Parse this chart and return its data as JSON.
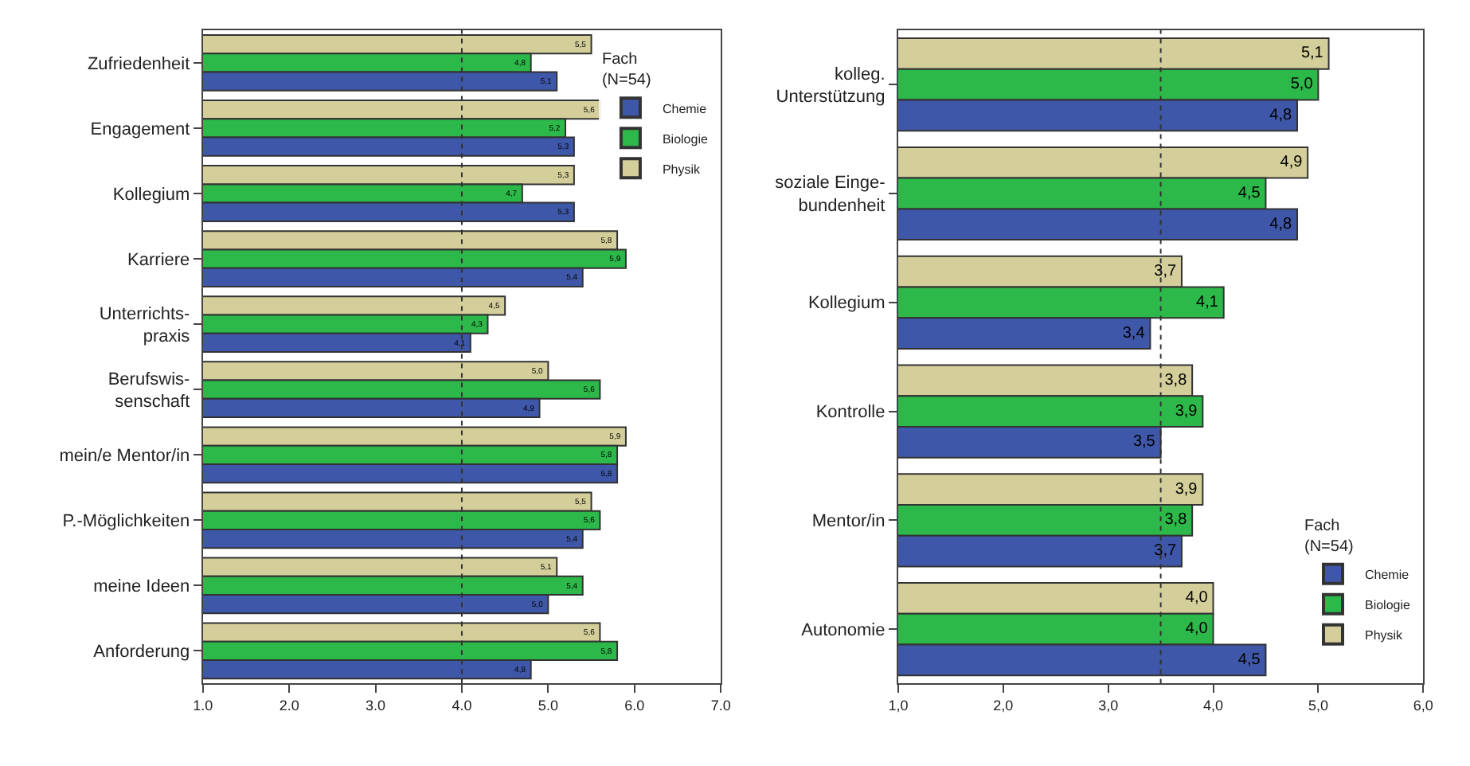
{
  "chart_data": [
    {
      "type": "bar",
      "orientation": "horizontal",
      "categories": [
        "Zufriedenheit",
        "Engagement",
        "Kollegium",
        "Karriere",
        "Unterrichts-\npraxis",
        "Berufswis-\nsenschaft",
        "mein/e Mentor/in",
        "P.-Möglichkeiten",
        "meine Ideen",
        "Anforderung"
      ],
      "series": [
        {
          "name": "Chemie",
          "color": "#3f57a8",
          "values": [
            5.1,
            5.3,
            5.3,
            5.4,
            4.1,
            4.9,
            5.8,
            5.4,
            5.0,
            4.8
          ],
          "value_labels": [
            "5,1",
            "5,3",
            "5,3",
            "5,4",
            "4,1",
            "4,9",
            "5,8",
            "5,4",
            "5,0",
            "4,8"
          ]
        },
        {
          "name": "Biologie",
          "color": "#2db84a",
          "values": [
            4.8,
            5.2,
            4.7,
            5.9,
            4.3,
            5.6,
            5.8,
            5.6,
            5.4,
            5.8
          ],
          "value_labels": [
            "4,8",
            "5,2",
            "4,7",
            "5,9",
            "4,3",
            "5,6",
            "5,8",
            "5,6",
            "5,4",
            "5,8"
          ]
        },
        {
          "name": "Physik",
          "color": "#d4cf9a",
          "values": [
            5.5,
            5.6,
            5.3,
            5.8,
            4.5,
            5.0,
            5.9,
            5.5,
            5.1,
            5.6
          ],
          "value_labels": [
            "5,5",
            "5,6",
            "5,3",
            "5,8",
            "4,5",
            "5,0",
            "5,9",
            "5,5",
            "5,1",
            "5,6"
          ]
        }
      ],
      "xlim": [
        1,
        7
      ],
      "xticks": [
        {
          "value": 1,
          "label": "1.0"
        },
        {
          "value": 2,
          "label": "2.0"
        },
        {
          "value": 3,
          "label": "3.0"
        },
        {
          "value": 4,
          "label": "4.0"
        },
        {
          "value": 5,
          "label": "5.0"
        },
        {
          "value": 6,
          "label": "6.0"
        },
        {
          "value": 7,
          "label": "7.0"
        }
      ],
      "ref_lines": [
        {
          "axis": "x",
          "value": 4,
          "color": "#333333",
          "line_style": "dotted"
        }
      ],
      "legend": "top right",
      "legend_title": "Fach\n(N=54)"
    },
    {
      "type": "bar",
      "orientation": "horizontal",
      "categories": [
        "kolleg.\nUnterstützung",
        "soziale Einge-\nbundenheit",
        "Kollegium",
        "Kontrolle",
        "Mentor/in",
        "Autonomie"
      ],
      "series": [
        {
          "name": "Chemie",
          "color": "#3f57a8",
          "values": [
            4.8,
            4.8,
            3.4,
            3.5,
            3.7,
            4.5
          ],
          "value_labels": [
            "4,8",
            "4,8",
            "3,4",
            "3,5",
            "3,7",
            "4,5"
          ]
        },
        {
          "name": "Biologie",
          "color": "#2db84a",
          "values": [
            5.0,
            4.5,
            4.1,
            3.9,
            3.8,
            4.0
          ],
          "value_labels": [
            "5,0",
            "4,5",
            "4,1",
            "3,9",
            "3,8",
            "4,0"
          ]
        },
        {
          "name": "Physik",
          "color": "#d4cf9a",
          "values": [
            5.1,
            4.9,
            3.7,
            3.8,
            3.9,
            4.0
          ],
          "value_labels": [
            "5,1",
            "4,9",
            "3,7",
            "3,8",
            "3,9",
            "4,0"
          ]
        }
      ],
      "xlim": [
        1,
        6
      ],
      "xticks": [
        {
          "value": 1,
          "label": "1,0"
        },
        {
          "value": 2,
          "label": "2,0"
        },
        {
          "value": 3,
          "label": "3,0"
        },
        {
          "value": 4,
          "label": "4,0"
        },
        {
          "value": 5,
          "label": "5,0"
        },
        {
          "value": 6,
          "label": "6,0"
        }
      ],
      "ref_lines": [
        {
          "axis": "x",
          "value": 3.5,
          "color": "#333333",
          "line_style": "dotted"
        }
      ],
      "legend": "bottom right",
      "legend_title": "Fach\n(N=54)"
    }
  ]
}
